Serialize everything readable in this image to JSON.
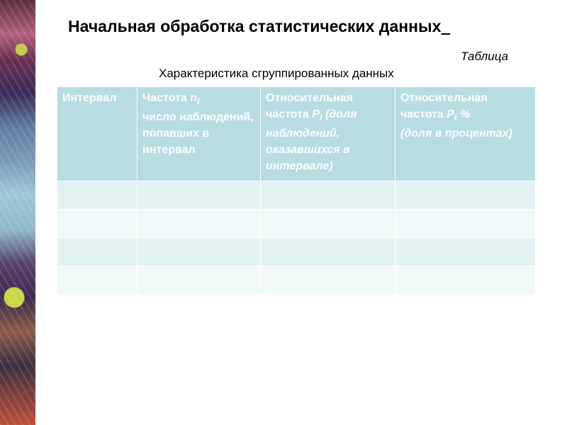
{
  "title": "Начальная обработка статистических данных",
  "table_label": "Таблица",
  "caption": "Характеристика сгруппированных данных",
  "table": {
    "headers": [
      "Интервал",
      "Частота n_i число наблюдений, попавших в интервал",
      "Относительная частота P_i (доля наблюдений, оказавшихся в интервале)",
      "Относительная частота P_i % (доля в процентах)"
    ],
    "rows": [
      [
        "",
        "",
        "",
        ""
      ],
      [
        "",
        "",
        "",
        ""
      ],
      [
        "",
        "",
        "",
        ""
      ],
      [
        "",
        "",
        "",
        ""
      ]
    ]
  },
  "colors": {
    "header_bg": "#b7dde0",
    "row_odd": "#e2f1f2",
    "row_even": "#f1f8f8"
  }
}
